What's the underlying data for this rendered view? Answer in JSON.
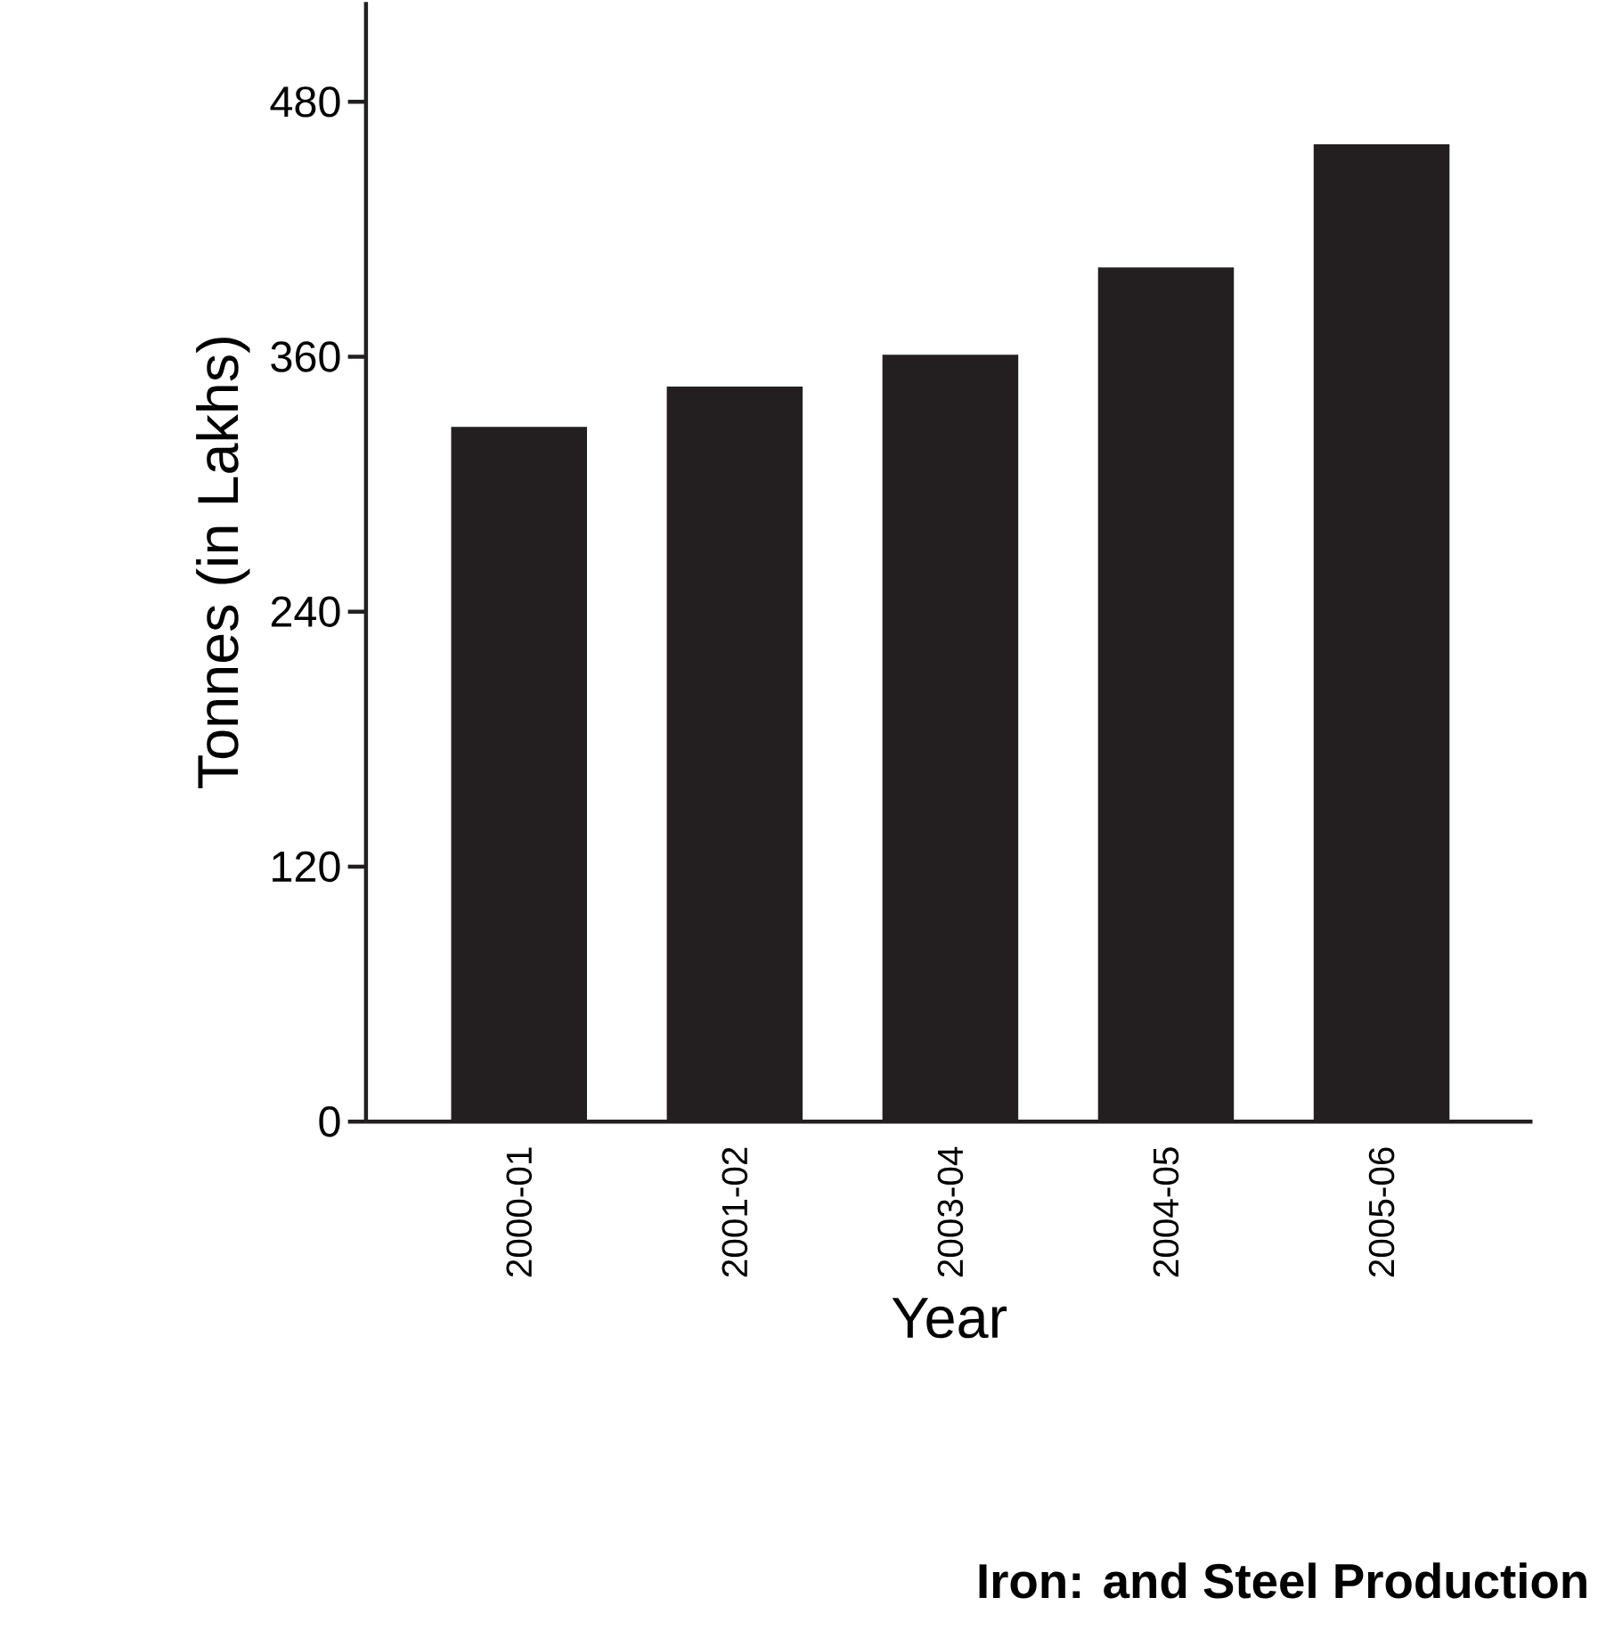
{
  "chart_data": {
    "type": "bar",
    "title": "Iron: and Steel Production",
    "xlabel": "Year",
    "ylabel": "Tonnes (in Lakhs)",
    "categories": [
      "2000-01",
      "2001-02",
      "2003-04",
      "2004-05",
      "2005-06"
    ],
    "values": [
      327,
      346,
      361,
      402,
      460
    ],
    "color": "#231f20",
    "ylim": [
      0,
      527
    ],
    "yticks": [
      0,
      120,
      240,
      360,
      480
    ],
    "grid": false
  }
}
